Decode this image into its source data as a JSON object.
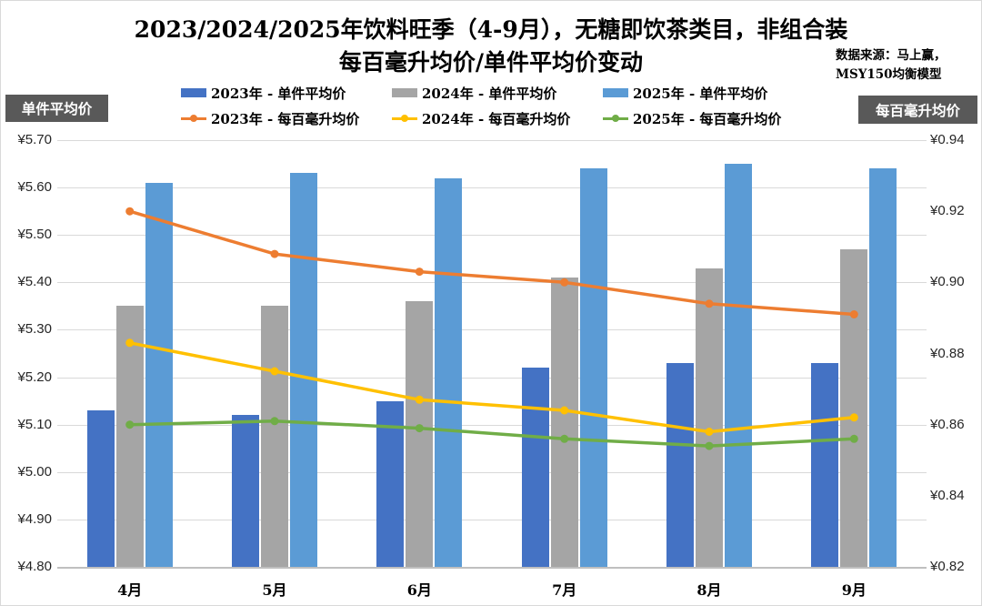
{
  "title": {
    "line1": "2023/2024/2025年饮料旺季（4-9月），无糖即饮茶类目，非组合装",
    "line2": "每百毫升均价/单件平均价变动"
  },
  "source_note": {
    "line1": "数据来源：马上赢，",
    "line2": "MSY150均衡模型"
  },
  "axis_badges": {
    "left": "单件平均价",
    "right": "每百毫升均价"
  },
  "colors": {
    "bar_2023": "#4472c4",
    "bar_2024": "#a5a5a5",
    "bar_2025": "#5b9bd5",
    "line_2023": "#ed7d31",
    "line_2024": "#ffc000",
    "line_2025": "#70ad47",
    "badge_bg": "#595959",
    "gridline": "#d9d9d9"
  },
  "chart_data": {
    "type": "bar",
    "subtype": "grouped bars + lines combo, dual axis",
    "categories": [
      "4月",
      "5月",
      "6月",
      "7月",
      "8月",
      "9月"
    ],
    "bar_series": [
      {
        "name": "2023年 - 单件平均价",
        "axis": "left",
        "color_key": "bar_2023",
        "values": [
          5.13,
          5.12,
          5.15,
          5.22,
          5.23,
          5.23
        ]
      },
      {
        "name": "2024年 - 单件平均价",
        "axis": "left",
        "color_key": "bar_2024",
        "values": [
          5.35,
          5.35,
          5.36,
          5.41,
          5.43,
          5.47
        ]
      },
      {
        "name": "2025年 - 单件平均价",
        "axis": "left",
        "color_key": "bar_2025",
        "values": [
          5.61,
          5.63,
          5.62,
          5.64,
          5.65,
          5.64
        ]
      }
    ],
    "line_series": [
      {
        "name": "2023年 - 每百毫升均价",
        "axis": "right",
        "color_key": "line_2023",
        "values": [
          0.92,
          0.908,
          0.903,
          0.9,
          0.894,
          0.891
        ]
      },
      {
        "name": "2024年 - 每百毫升均价",
        "axis": "right",
        "color_key": "line_2024",
        "values": [
          0.883,
          0.875,
          0.867,
          0.864,
          0.858,
          0.862
        ]
      },
      {
        "name": "2025年 - 每百毫升均价",
        "axis": "right",
        "color_key": "line_2025",
        "values": [
          0.86,
          0.861,
          0.859,
          0.856,
          0.854,
          0.856
        ]
      }
    ],
    "left_axis": {
      "label": "单件平均价",
      "min": 4.8,
      "max": 5.7,
      "tick_step": 0.1,
      "ticks": [
        "¥5.70",
        "¥5.60",
        "¥5.50",
        "¥5.40",
        "¥5.30",
        "¥5.20",
        "¥5.10",
        "¥5.00",
        "¥4.90",
        "¥4.80"
      ]
    },
    "right_axis": {
      "label": "每百毫升均价",
      "min": 0.82,
      "max": 0.94,
      "tick_step": 0.02,
      "ticks": [
        "¥0.94",
        "¥0.92",
        "¥0.90",
        "¥0.88",
        "¥0.86",
        "¥0.84",
        "¥0.82"
      ]
    },
    "grid": true,
    "legend_position": "top"
  }
}
